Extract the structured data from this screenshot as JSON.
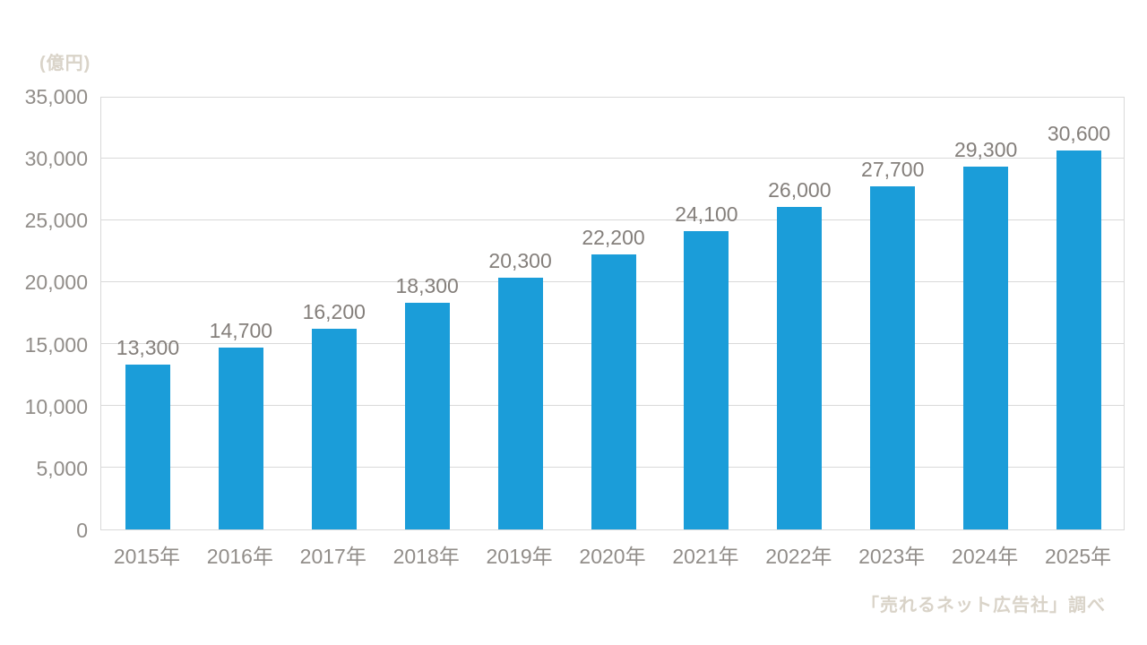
{
  "chart_data": {
    "type": "bar",
    "title": "",
    "unit_label": "(億円)",
    "source": "「売れるネット広告社」調べ",
    "categories": [
      "2015年",
      "2016年",
      "2017年",
      "2018年",
      "2019年",
      "2020年",
      "2021年",
      "2022年",
      "2023年",
      "2024年",
      "2025年"
    ],
    "values": [
      13300,
      14700,
      16200,
      18300,
      20300,
      22200,
      24100,
      26000,
      27700,
      29300,
      30600
    ],
    "value_labels": [
      "13,300",
      "14,700",
      "16,200",
      "18,300",
      "20,300",
      "22,200",
      "24,100",
      "26,000",
      "27,700",
      "29,300",
      "30,600"
    ],
    "xlabel": "",
    "ylabel": "(億円)",
    "ylim": [
      0,
      35000
    ],
    "yticks": [
      {
        "value": 0,
        "label": "0"
      },
      {
        "value": 5000,
        "label": "5,000"
      },
      {
        "value": 10000,
        "label": "10,000"
      },
      {
        "value": 15000,
        "label": "15,000"
      },
      {
        "value": 20000,
        "label": "20,000"
      },
      {
        "value": 25000,
        "label": "25,000"
      },
      {
        "value": 30000,
        "label": "30,000"
      },
      {
        "value": 35000,
        "label": "35,000"
      }
    ],
    "grid": true,
    "legend_position": "none",
    "colors": {
      "bar": "#1b9dd9",
      "grid": "#d9d9d9",
      "tick_label": "#918d89",
      "value_label": "#847f7b",
      "faint_label": "#d9d3c8",
      "background": "#ffffff"
    }
  }
}
